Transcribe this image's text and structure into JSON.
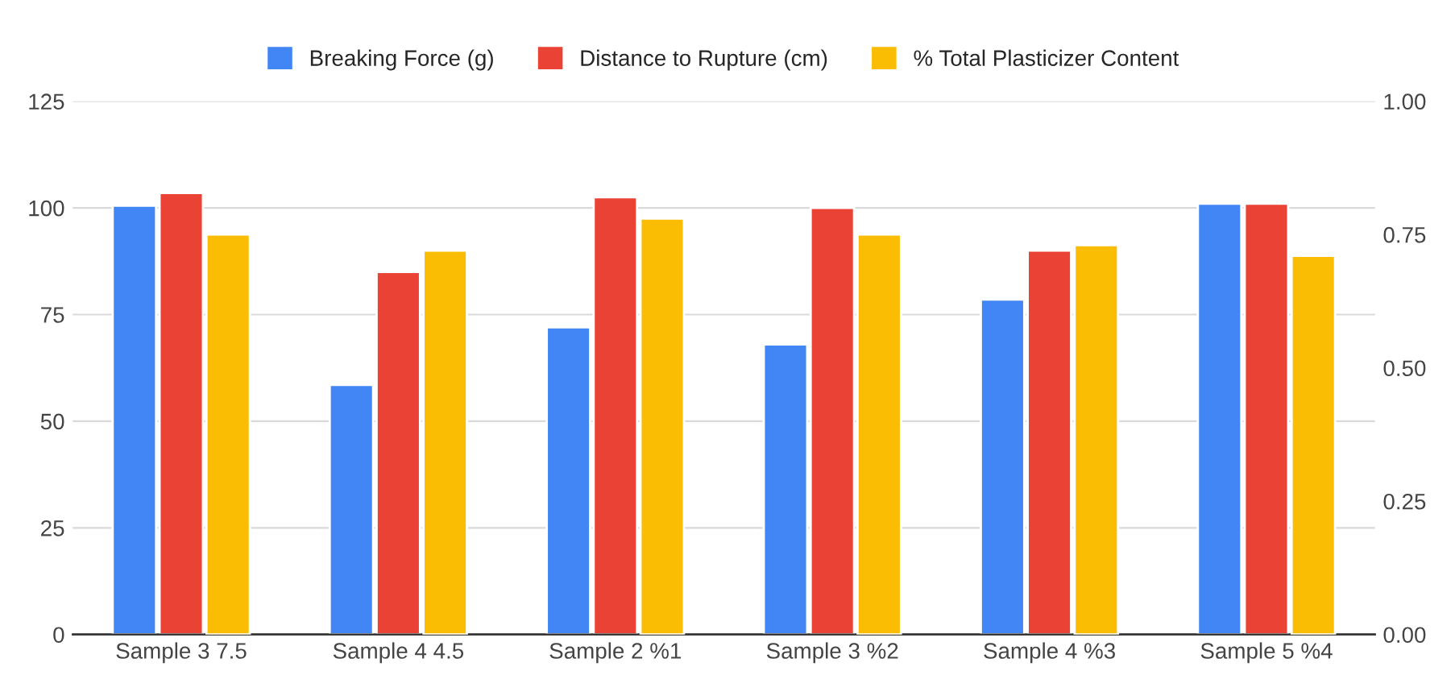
{
  "chart_data": {
    "type": "bar",
    "categories": [
      "Sample 3 7.5",
      "Sample 4 4.5",
      "Sample 2 %1",
      "Sample 3 %2",
      "Sample 4 %3",
      "Sample 5 %4"
    ],
    "series": [
      {
        "name": "Breaking Force (g)",
        "color": "#4285f4",
        "values": [
          100.5,
          58.5,
          72,
          68,
          78.5,
          101
        ]
      },
      {
        "name": "Distance to Rupture (cm)",
        "color": "#ea4335",
        "values": [
          103.5,
          85,
          102.5,
          100,
          90,
          101
        ]
      },
      {
        "name": "% Total Plasticizer Content",
        "color": "#fbbc04",
        "axis": "y2",
        "values": [
          0.75,
          0.72,
          0.78,
          0.75,
          0.73,
          0.71
        ]
      }
    ],
    "ylim": [
      0,
      125
    ],
    "yticks": [
      0,
      25,
      50,
      75,
      100,
      125
    ],
    "y2lim": [
      0,
      1
    ],
    "y2ticks": [
      {
        "value": 0,
        "label": "0.00"
      },
      {
        "value": 0.25,
        "label": "0.25"
      },
      {
        "value": 0.5,
        "label": "0.50"
      },
      {
        "value": 0.75,
        "label": "0.75"
      },
      {
        "value": 1,
        "label": "1.00"
      }
    ],
    "grid": "y",
    "legend": "top"
  }
}
